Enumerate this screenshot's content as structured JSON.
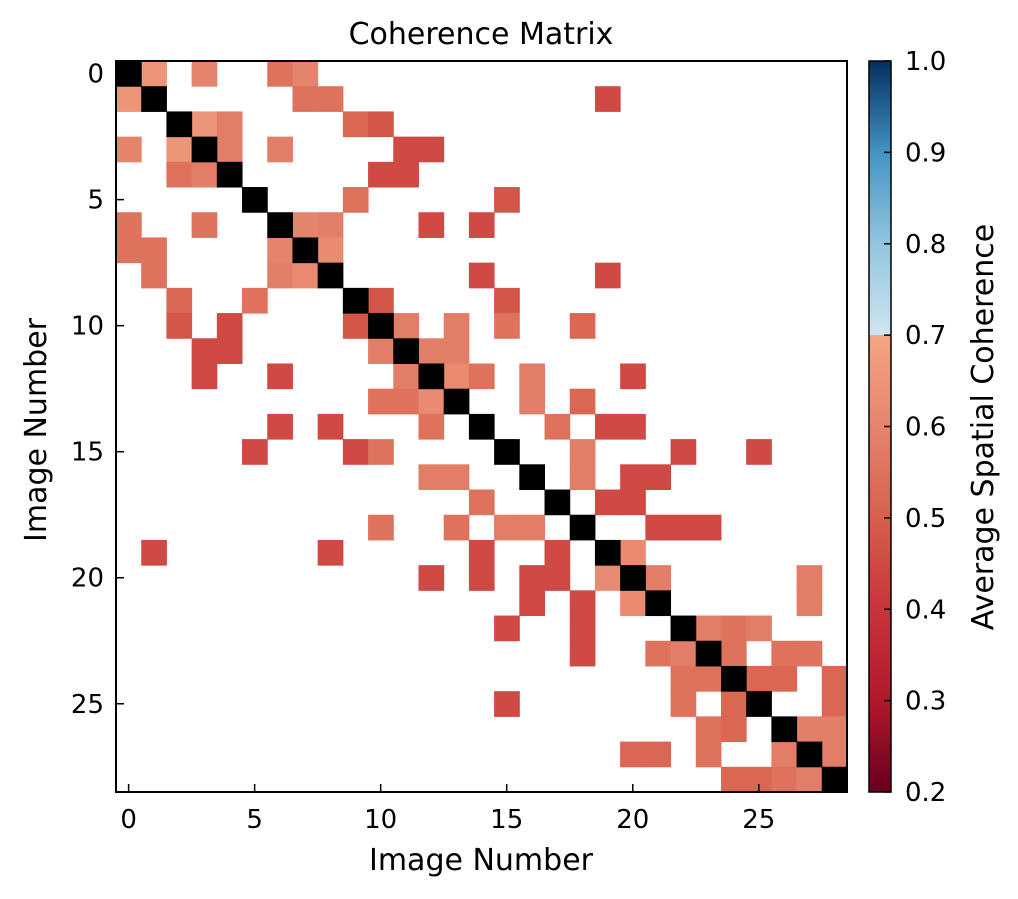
{
  "chart_data": {
    "type": "heatmap",
    "title": "Coherence Matrix",
    "xlabel": "Image Number",
    "ylabel": "Image Number",
    "size": 29,
    "x_ticks": [
      0,
      5,
      10,
      15,
      20,
      25
    ],
    "y_ticks": [
      0,
      5,
      10,
      15,
      20,
      25
    ],
    "diagonal_value": 1.0,
    "diagonal_color": "#000000",
    "missing_color": "#ffffff",
    "colorbar": {
      "label": "Average Spatial Coherence",
      "vmin": 0.2,
      "vmax": 1.0,
      "ticks": [
        0.2,
        0.3,
        0.4,
        0.5,
        0.6,
        0.7,
        0.8,
        0.9,
        1.0
      ],
      "tick_labels": [
        "0.2",
        "0.3",
        "0.4",
        "0.5",
        "0.6",
        "0.7",
        "0.8",
        "0.9",
        "1.0"
      ],
      "colormap": "RdBu",
      "stops": [
        [
          0.2,
          "#67001f"
        ],
        [
          0.3,
          "#b2182b"
        ],
        [
          0.4,
          "#c8343b"
        ],
        [
          0.5,
          "#d6604d"
        ],
        [
          0.6,
          "#e5846d"
        ],
        [
          0.7,
          "#f4a582"
        ],
        [
          0.7001,
          "#cfe5ef"
        ],
        [
          0.8,
          "#92c5de"
        ],
        [
          0.9,
          "#4393c3"
        ],
        [
          1.0,
          "#053061"
        ]
      ]
    },
    "cells": [
      [
        0,
        1,
        0.65
      ],
      [
        0,
        3,
        0.6
      ],
      [
        0,
        6,
        0.55
      ],
      [
        0,
        7,
        0.6
      ],
      [
        1,
        0,
        0.65
      ],
      [
        1,
        7,
        0.55
      ],
      [
        1,
        8,
        0.55
      ],
      [
        1,
        19,
        0.45
      ],
      [
        2,
        3,
        0.65
      ],
      [
        2,
        4,
        0.58
      ],
      [
        2,
        9,
        0.52
      ],
      [
        2,
        10,
        0.48
      ],
      [
        3,
        0,
        0.6
      ],
      [
        3,
        2,
        0.65
      ],
      [
        3,
        4,
        0.58
      ],
      [
        3,
        6,
        0.58
      ],
      [
        3,
        11,
        0.45
      ],
      [
        3,
        12,
        0.45
      ],
      [
        4,
        2,
        0.55
      ],
      [
        4,
        3,
        0.58
      ],
      [
        4,
        10,
        0.45
      ],
      [
        4,
        11,
        0.45
      ],
      [
        5,
        9,
        0.55
      ],
      [
        5,
        15,
        0.48
      ],
      [
        6,
        0,
        0.55
      ],
      [
        6,
        3,
        0.55
      ],
      [
        6,
        7,
        0.6
      ],
      [
        6,
        8,
        0.58
      ],
      [
        6,
        12,
        0.45
      ],
      [
        6,
        14,
        0.45
      ],
      [
        7,
        0,
        0.55
      ],
      [
        7,
        1,
        0.55
      ],
      [
        7,
        6,
        0.6
      ],
      [
        7,
        8,
        0.62
      ],
      [
        8,
        1,
        0.55
      ],
      [
        8,
        6,
        0.58
      ],
      [
        8,
        7,
        0.62
      ],
      [
        8,
        14,
        0.45
      ],
      [
        8,
        19,
        0.45
      ],
      [
        9,
        2,
        0.52
      ],
      [
        9,
        5,
        0.55
      ],
      [
        9,
        10,
        0.48
      ],
      [
        9,
        15,
        0.48
      ],
      [
        10,
        2,
        0.48
      ],
      [
        10,
        4,
        0.45
      ],
      [
        10,
        9,
        0.48
      ],
      [
        10,
        11,
        0.58
      ],
      [
        10,
        13,
        0.58
      ],
      [
        10,
        15,
        0.55
      ],
      [
        10,
        18,
        0.52
      ],
      [
        11,
        3,
        0.45
      ],
      [
        11,
        4,
        0.45
      ],
      [
        11,
        10,
        0.58
      ],
      [
        11,
        12,
        0.58
      ],
      [
        11,
        13,
        0.58
      ],
      [
        12,
        3,
        0.45
      ],
      [
        12,
        6,
        0.45
      ],
      [
        12,
        11,
        0.58
      ],
      [
        12,
        13,
        0.62
      ],
      [
        12,
        14,
        0.55
      ],
      [
        12,
        16,
        0.58
      ],
      [
        12,
        20,
        0.45
      ],
      [
        13,
        10,
        0.55
      ],
      [
        13,
        11,
        0.55
      ],
      [
        13,
        12,
        0.62
      ],
      [
        13,
        16,
        0.58
      ],
      [
        13,
        18,
        0.52
      ],
      [
        14,
        6,
        0.45
      ],
      [
        14,
        8,
        0.45
      ],
      [
        14,
        12,
        0.55
      ],
      [
        14,
        17,
        0.55
      ],
      [
        14,
        19,
        0.45
      ],
      [
        14,
        20,
        0.45
      ],
      [
        15,
        5,
        0.45
      ],
      [
        15,
        9,
        0.45
      ],
      [
        15,
        10,
        0.55
      ],
      [
        15,
        18,
        0.58
      ],
      [
        15,
        22,
        0.45
      ],
      [
        15,
        25,
        0.45
      ],
      [
        16,
        12,
        0.58
      ],
      [
        16,
        13,
        0.58
      ],
      [
        16,
        18,
        0.58
      ],
      [
        16,
        20,
        0.45
      ],
      [
        16,
        21,
        0.45
      ],
      [
        17,
        14,
        0.55
      ],
      [
        17,
        19,
        0.45
      ],
      [
        17,
        20,
        0.45
      ],
      [
        18,
        10,
        0.55
      ],
      [
        18,
        13,
        0.55
      ],
      [
        18,
        15,
        0.58
      ],
      [
        18,
        16,
        0.58
      ],
      [
        18,
        21,
        0.45
      ],
      [
        18,
        22,
        0.45
      ],
      [
        18,
        23,
        0.45
      ],
      [
        19,
        1,
        0.45
      ],
      [
        19,
        8,
        0.45
      ],
      [
        19,
        14,
        0.45
      ],
      [
        19,
        17,
        0.45
      ],
      [
        19,
        20,
        0.62
      ],
      [
        20,
        12,
        0.45
      ],
      [
        20,
        14,
        0.45
      ],
      [
        20,
        16,
        0.45
      ],
      [
        20,
        17,
        0.45
      ],
      [
        20,
        19,
        0.62
      ],
      [
        20,
        21,
        0.58
      ],
      [
        20,
        27,
        0.58
      ],
      [
        21,
        16,
        0.45
      ],
      [
        21,
        18,
        0.45
      ],
      [
        21,
        20,
        0.62
      ],
      [
        21,
        27,
        0.58
      ],
      [
        22,
        15,
        0.45
      ],
      [
        22,
        18,
        0.45
      ],
      [
        22,
        23,
        0.58
      ],
      [
        22,
        24,
        0.55
      ],
      [
        22,
        25,
        0.58
      ],
      [
        23,
        18,
        0.45
      ],
      [
        23,
        21,
        0.55
      ],
      [
        23,
        22,
        0.58
      ],
      [
        23,
        24,
        0.55
      ],
      [
        23,
        26,
        0.55
      ],
      [
        23,
        27,
        0.55
      ],
      [
        24,
        22,
        0.55
      ],
      [
        24,
        23,
        0.55
      ],
      [
        24,
        25,
        0.52
      ],
      [
        24,
        26,
        0.52
      ],
      [
        24,
        28,
        0.52
      ],
      [
        25,
        15,
        0.45
      ],
      [
        25,
        22,
        0.55
      ],
      [
        25,
        24,
        0.52
      ],
      [
        25,
        28,
        0.52
      ],
      [
        26,
        23,
        0.55
      ],
      [
        26,
        24,
        0.52
      ],
      [
        26,
        27,
        0.58
      ],
      [
        26,
        28,
        0.58
      ],
      [
        27,
        20,
        0.52
      ],
      [
        27,
        21,
        0.52
      ],
      [
        27,
        23,
        0.55
      ],
      [
        27,
        26,
        0.58
      ],
      [
        27,
        28,
        0.58
      ],
      [
        28,
        24,
        0.52
      ],
      [
        28,
        25,
        0.52
      ],
      [
        28,
        26,
        0.55
      ],
      [
        28,
        27,
        0.58
      ]
    ]
  }
}
